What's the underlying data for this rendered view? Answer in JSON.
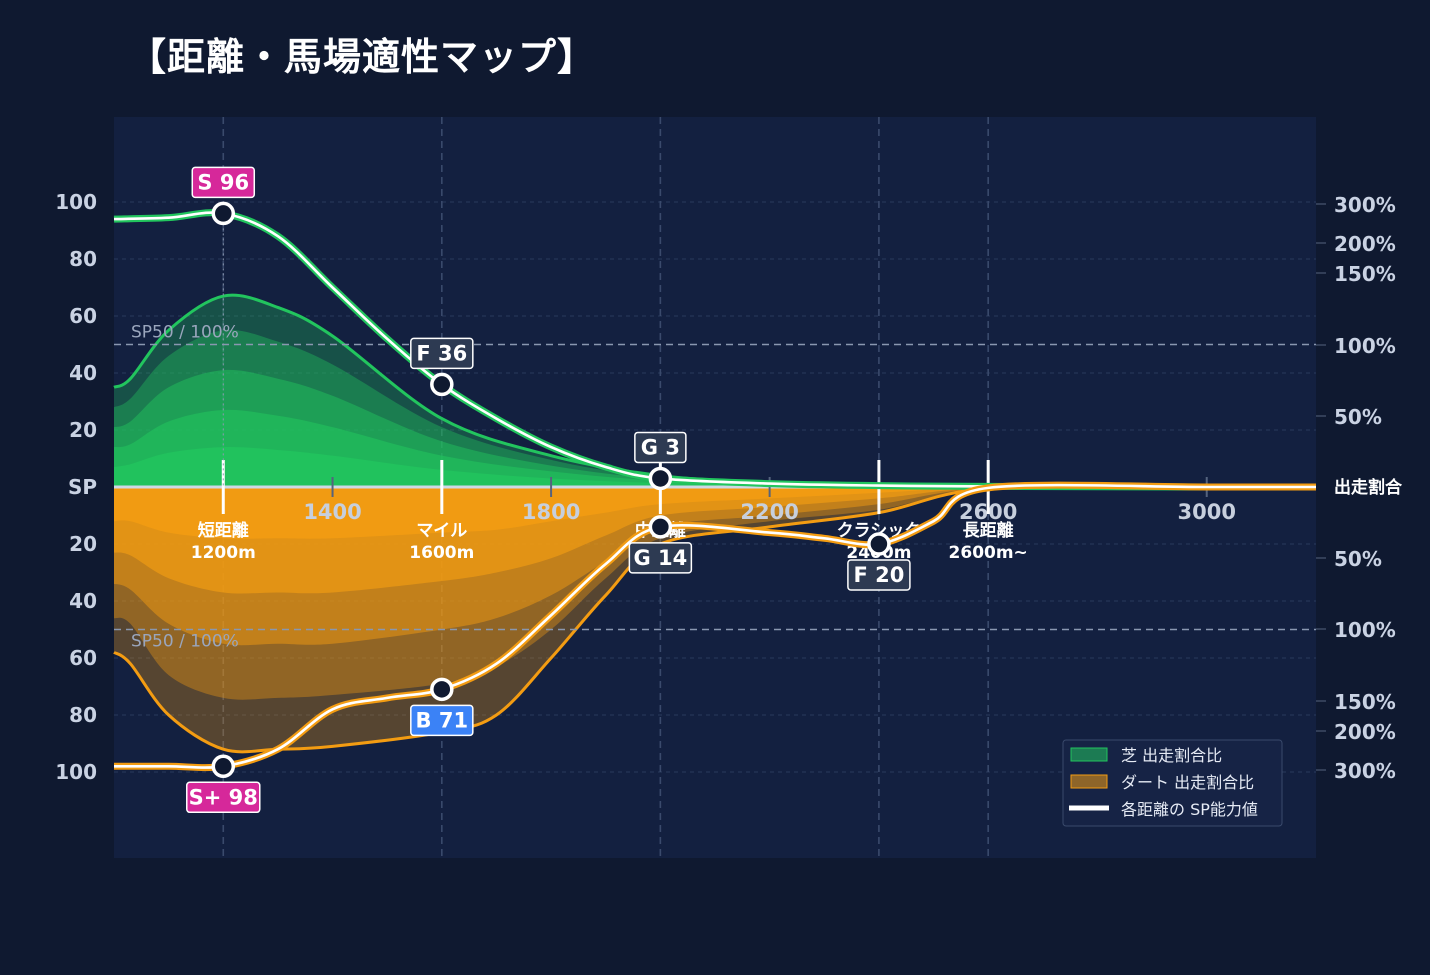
{
  "title": "【距離・馬場適性マップ】",
  "colors": {
    "background": "#0f1930",
    "plot": "#132040",
    "turf": "#22c55e",
    "dirt": "#f39c12",
    "badge_s": "#d6289a",
    "badge_b": "#3b82f6",
    "badge_other": "#2d3a52"
  },
  "chart_data": {
    "type": "area",
    "x_ticks": [
      "1400",
      "1800",
      "2200",
      "2600",
      "3000"
    ],
    "xlim": [
      1000,
      3200
    ],
    "categories": [
      {
        "name": "短距離",
        "sub": "1200m",
        "x": 1200
      },
      {
        "name": "マイル",
        "sub": "1600m",
        "x": 1600
      },
      {
        "name": "中距離",
        "sub": "",
        "x": 2000
      },
      {
        "name": "クラシック",
        "sub": "2400m",
        "x": 2400
      },
      {
        "name": "長距離",
        "sub": "2600m~",
        "x": 2600
      }
    ],
    "y_ticks_left_top": [
      "100",
      "80",
      "60",
      "40",
      "20"
    ],
    "y_center_label": "SP",
    "y_ticks_left_bottom": [
      "20",
      "40",
      "60",
      "80",
      "100"
    ],
    "ylim": [
      0,
      100
    ],
    "y_ticks_right_top": [
      "300%",
      "200%",
      "150%",
      "100%",
      "50%"
    ],
    "right_center_label": "出走割合",
    "y_ticks_right_bottom": [
      "50%",
      "100%",
      "150%",
      "200%",
      "300%"
    ],
    "reference_line_label": "SP50 / 100%",
    "reference_value": 50,
    "grid": true,
    "legend_position": "bottom-right",
    "legend": [
      "芝 出走割合比",
      "ダート 出走割合比",
      "各距離の SP能力値"
    ],
    "series": [
      {
        "name": "芝 出走割合比",
        "x": [
          1000,
          1030,
          1100,
          1200,
          1300,
          1400,
          1600,
          1800,
          2000,
          2200,
          2400,
          2600,
          3000,
          3200
        ],
        "layers": [
          [
            35,
            38,
            55,
            67,
            63,
            53,
            24,
            11,
            4,
            1.6,
            0.5,
            0.2,
            0,
            0
          ],
          [
            28,
            31,
            46,
            55,
            51,
            43,
            21,
            9.5,
            3.3,
            1.3,
            0.4,
            0.2,
            0,
            0
          ],
          [
            21,
            23,
            35,
            41,
            38,
            32,
            16,
            7.5,
            2.8,
            1.1,
            0.3,
            0.1,
            0,
            0
          ],
          [
            14,
            15,
            23,
            27,
            25,
            21,
            11,
            5.5,
            2.2,
            0.9,
            0.3,
            0.1,
            0,
            0
          ],
          [
            7,
            8,
            12,
            14,
            13,
            11,
            6,
            3,
            1.4,
            0.6,
            0.2,
            0.1,
            0,
            0
          ]
        ]
      },
      {
        "name": "ダート 出走割合比",
        "x": [
          1000,
          1030,
          1100,
          1200,
          1300,
          1400,
          1600,
          1700,
          1800,
          1900,
          2000,
          2200,
          2400,
          2600,
          3000,
          3200
        ],
        "layers": [
          [
            58,
            62,
            80,
            92,
            92,
            91,
            86,
            80,
            60,
            38,
            20,
            14,
            9,
            0.5,
            0,
            0
          ],
          [
            46,
            48,
            66,
            74,
            74,
            73,
            69,
            63,
            50,
            32,
            18,
            12,
            8,
            0.5,
            0,
            0
          ],
          [
            34,
            36,
            48,
            55,
            55,
            55,
            50,
            46,
            38,
            26,
            14,
            10,
            6,
            0.4,
            0,
            0
          ],
          [
            23,
            24,
            32,
            37,
            37,
            37,
            33,
            30,
            25,
            17,
            10,
            7,
            4,
            0.3,
            0,
            0
          ],
          [
            12,
            12,
            16,
            18,
            18,
            18,
            16,
            15,
            12,
            9,
            6,
            4,
            2,
            0.2,
            0,
            0
          ]
        ]
      },
      {
        "name": "各距離の SP能力値 (芝)",
        "x": [
          1000,
          1100,
          1200,
          1300,
          1400,
          1500,
          1600,
          1700,
          1800,
          1900,
          2000,
          2200,
          2400,
          2600,
          3000,
          3200
        ],
        "y": [
          94,
          94.5,
          96,
          88,
          70,
          52,
          36,
          24,
          14,
          7,
          3,
          1.2,
          0.5,
          0.2,
          0,
          0
        ]
      },
      {
        "name": "各距離の SP能力値 (ダート)",
        "x": [
          1000,
          1100,
          1200,
          1300,
          1400,
          1500,
          1600,
          1700,
          1800,
          1900,
          2000,
          2200,
          2300,
          2400,
          2500,
          2600,
          3000,
          3200
        ],
        "y": [
          98,
          98,
          98,
          92,
          78,
          74,
          71,
          62,
          45,
          27,
          14,
          16,
          18,
          20,
          12,
          0.3,
          0,
          0
        ]
      }
    ],
    "markers": [
      {
        "label": "S 96",
        "x": 1200,
        "value": 96,
        "side": "turf",
        "badge": "s",
        "pos": "above"
      },
      {
        "label": "F 36",
        "x": 1600,
        "value": 36,
        "side": "turf",
        "badge": "other",
        "pos": "above"
      },
      {
        "label": "G 3",
        "x": 2000,
        "value": 3,
        "side": "turf",
        "badge": "other",
        "pos": "above"
      },
      {
        "label": "S+ 98",
        "x": 1200,
        "value": 98,
        "side": "dirt",
        "badge": "s",
        "pos": "below"
      },
      {
        "label": "B 71",
        "x": 1600,
        "value": 71,
        "side": "dirt",
        "badge": "b",
        "pos": "below"
      },
      {
        "label": "G 14",
        "x": 2000,
        "value": 14,
        "side": "dirt",
        "badge": "other",
        "pos": "below"
      },
      {
        "label": "F 20",
        "x": 2400,
        "value": 20,
        "side": "dirt",
        "badge": "other",
        "pos": "below"
      }
    ]
  }
}
